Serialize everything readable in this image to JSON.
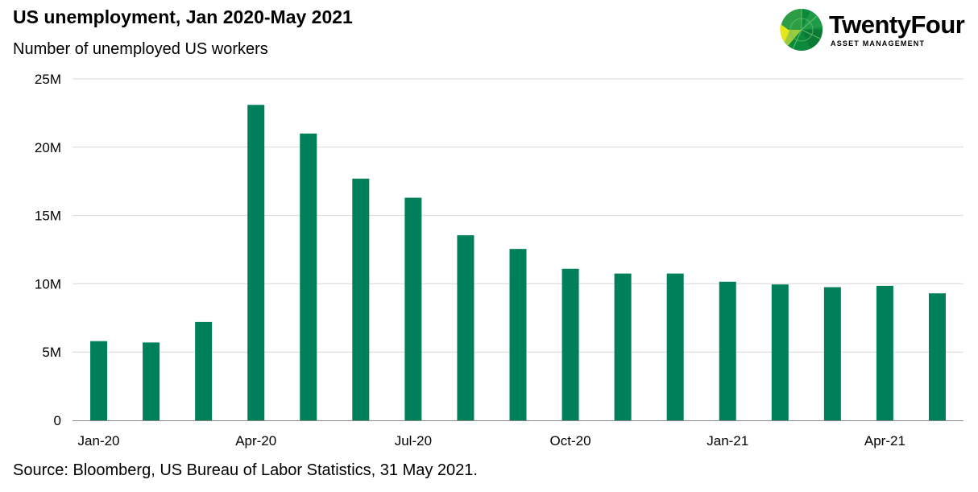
{
  "logo": {
    "word": "TwentyFour",
    "sub": "ASSET MANAGEMENT",
    "colors": [
      "#0a8a3a",
      "#4caf50",
      "#9ccc3d",
      "#e6e61e"
    ]
  },
  "chart_data": {
    "type": "bar",
    "title": "US unemployment, Jan 2020-May 2021",
    "subtitle": "Number of unemployed US workers",
    "source": "Source: Bloomberg, US Bureau of Labor Statistics, 31 May 2021.",
    "categories": [
      "Jan-20",
      "Feb-20",
      "Mar-20",
      "Apr-20",
      "May-20",
      "Jun-20",
      "Jul-20",
      "Aug-20",
      "Sep-20",
      "Oct-20",
      "Nov-20",
      "Dec-20",
      "Jan-21",
      "Feb-21",
      "Mar-21",
      "Apr-21",
      "May-21"
    ],
    "series": [
      {
        "values": [
          5.8,
          5.7,
          7.2,
          23.1,
          21.0,
          17.7,
          16.3,
          13.55,
          12.55,
          11.1,
          10.75,
          10.75,
          10.15,
          9.95,
          9.75,
          9.85,
          9.3
        ]
      }
    ],
    "x_tick_labels": [
      "Jan-20",
      "",
      "",
      "Apr-20",
      "",
      "",
      "Jul-20",
      "",
      "",
      "Oct-20",
      "",
      "",
      "Jan-21",
      "",
      "",
      "Apr-21",
      ""
    ],
    "y_ticks": [
      0,
      5,
      10,
      15,
      20,
      25
    ],
    "y_tick_labels": [
      "0",
      "5M",
      "10M",
      "15M",
      "20M",
      "25M"
    ],
    "ylim": [
      0,
      25
    ],
    "unit": "M",
    "grid": true,
    "legend": "none",
    "bar_color": "#00805a",
    "grid_color": "#d9d9d9",
    "axis_color": "#888888"
  }
}
